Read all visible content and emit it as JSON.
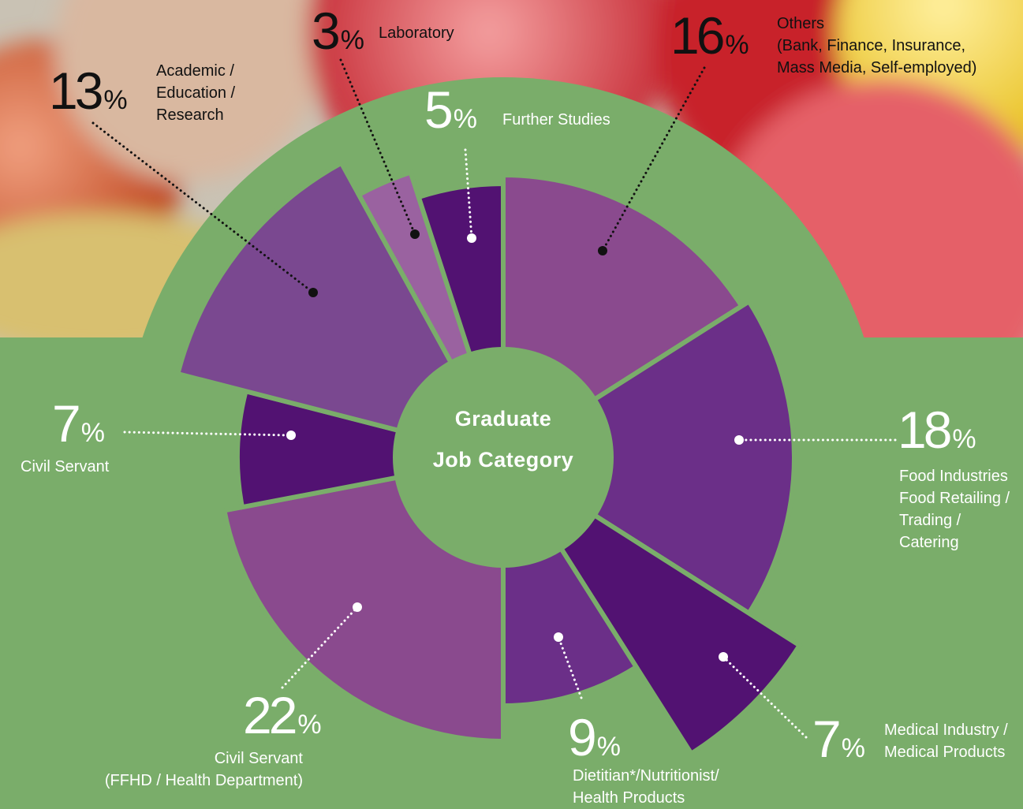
{
  "chart_data": {
    "type": "polar-pie",
    "title": "Graduate\nJob Category",
    "unit": "%",
    "categories": [
      "Others\n(Bank, Finance, Insurance,\nMass Media, Self-employed)",
      "Food Industries\nFood Retailing /\nTrading /\nCatering",
      "Medical Industry /\nMedical Products",
      "Dietitian*/Nutritionist/\nHealth Products",
      "Civil Servant\n(FFHD / Health Department)",
      "Civil Servant",
      "Academic /\nEducation /\nResearch",
      "Laboratory",
      "Further Studies"
    ],
    "values": [
      16,
      18,
      7,
      9,
      22,
      7,
      13,
      3,
      5
    ],
    "colors": [
      "#8a4a8e",
      "#6b2f88",
      "#521272",
      "#6b2f88",
      "#8a4a8e",
      "#521272",
      "#7a4890",
      "#9a62a0",
      "#521272"
    ]
  }
}
